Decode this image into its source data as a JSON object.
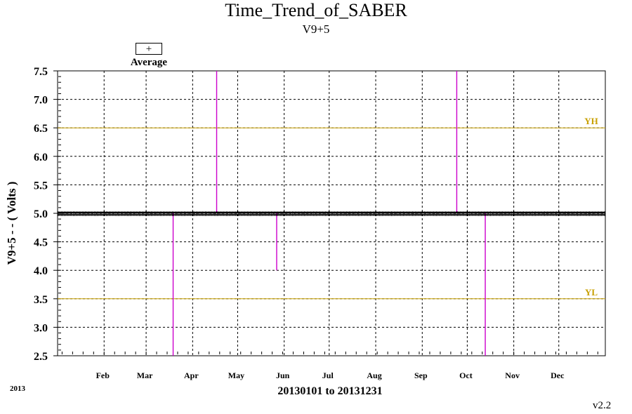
{
  "chart_data": {
    "type": "line",
    "title": "Time_Trend_of_SABER",
    "subtitle": "V9+5",
    "ylabel": "V9+5 - - ( Volts )",
    "xlabel": "20130101 to 20131231",
    "year_label": "2013",
    "version": "v2.2",
    "legend": {
      "symbol": "+",
      "label": "Average"
    },
    "ylim": [
      2.5,
      7.5
    ],
    "yticks": [
      "2.5",
      "3.0",
      "3.5",
      "4.0",
      "4.5",
      "5.0",
      "5.5",
      "6.0",
      "6.5",
      "7.0",
      "7.5"
    ],
    "months": [
      "Feb",
      "Mar",
      "Apr",
      "May",
      "Jun",
      "Jul",
      "Aug",
      "Sep",
      "Oct",
      "Nov",
      "Dec"
    ],
    "thresholds": [
      {
        "name": "YH",
        "value": 6.5,
        "color": "#c8a000"
      },
      {
        "name": "YL",
        "value": 3.5,
        "color": "#c8a000"
      }
    ],
    "series": [
      {
        "name": "Average",
        "baseline": 5.0,
        "color": "#000000",
        "spikes": [
          {
            "day": 77,
            "value": 2.5
          },
          {
            "day": 106,
            "value": 7.5
          },
          {
            "day": 146,
            "value": 4.0
          },
          {
            "day": 266,
            "value": 7.5
          },
          {
            "day": 285,
            "value": 2.5
          }
        ],
        "spike_color": "#cc00cc"
      }
    ],
    "grid": true
  }
}
